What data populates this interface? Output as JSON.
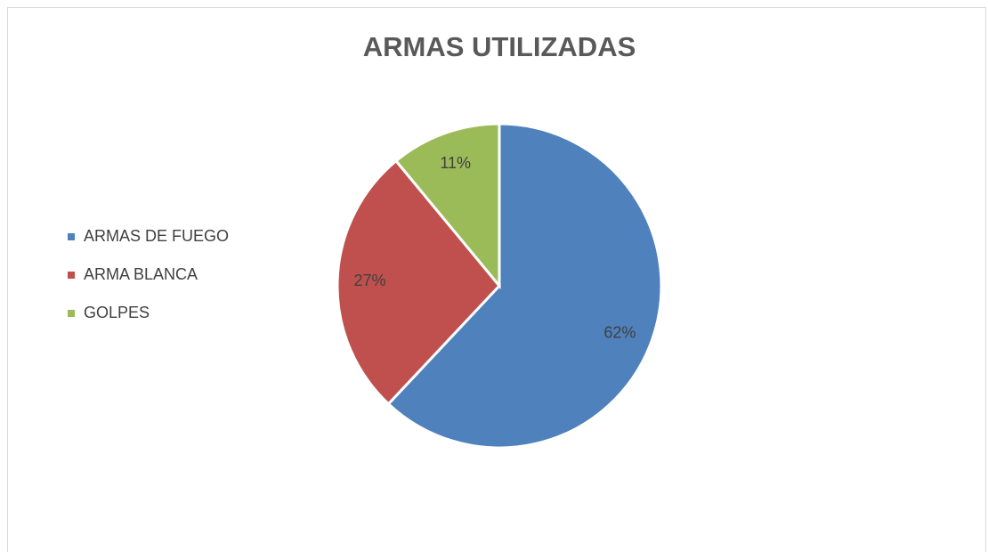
{
  "chart_data": {
    "type": "pie",
    "title": "ARMAS UTILIZADAS",
    "categories": [
      "ARMAS DE FUEGO",
      "ARMA BLANCA",
      "GOLPES"
    ],
    "values": [
      62,
      27,
      11
    ],
    "value_labels": [
      "62%",
      "27%",
      "11%"
    ],
    "colors": [
      "#4f81bd",
      "#c0504d",
      "#9bbb59"
    ],
    "legend": "left"
  }
}
